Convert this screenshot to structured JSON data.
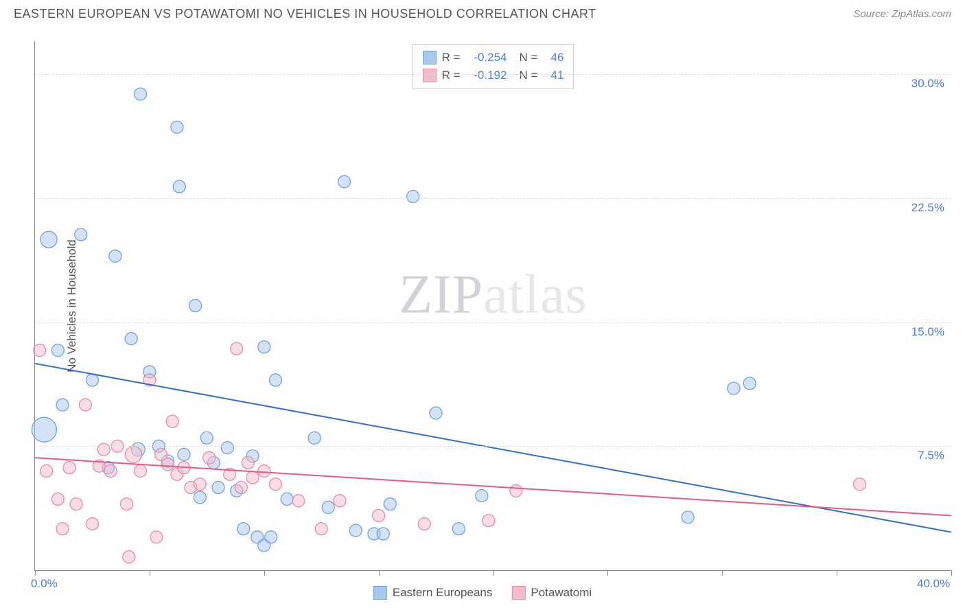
{
  "header": {
    "title": "EASTERN EUROPEAN VS POTAWATOMI NO VEHICLES IN HOUSEHOLD CORRELATION CHART",
    "source_prefix": "Source: ",
    "source": "ZipAtlas.com"
  },
  "chart": {
    "type": "scatter-with-regression",
    "ylabel": "No Vehicles in Household",
    "xlim": [
      0,
      40
    ],
    "ylim": [
      0,
      32
    ],
    "xtick_positions": [
      0,
      5,
      10,
      15,
      20,
      25,
      30,
      35,
      40
    ],
    "xtick_labels": {
      "0": "0.0%",
      "40": "40.0%"
    },
    "ytick_grid": [
      7.5,
      15.0,
      22.5,
      30.0
    ],
    "ytick_labels": [
      "7.5%",
      "15.0%",
      "22.5%",
      "30.0%"
    ],
    "grid_color": "#dddddd",
    "background_color": "#ffffff",
    "axis_color": "#888888",
    "label_color": "#555555",
    "tick_label_color": "#4a7fd8",
    "marker_radius": 9,
    "marker_opacity": 0.5,
    "line_width": 2,
    "watermark": {
      "text_a": "ZIP",
      "text_b": "atlas"
    },
    "series": [
      {
        "name": "Eastern Europeans",
        "color_fill": "#a8c8ec",
        "color_stroke": "#6da3e0",
        "line_color": "#2e6fd1",
        "R": "-0.254",
        "N": "46",
        "regression": {
          "x1": 0,
          "y1": 12.5,
          "x2": 40,
          "y2": 2.3
        },
        "points": [
          [
            0.4,
            8.5,
            18
          ],
          [
            0.6,
            20.0,
            12
          ],
          [
            1.0,
            13.3,
            9
          ],
          [
            1.2,
            10.0,
            9
          ],
          [
            2.0,
            20.3,
            9
          ],
          [
            2.5,
            11.5,
            9
          ],
          [
            3.2,
            6.2,
            9
          ],
          [
            3.5,
            19.0,
            9
          ],
          [
            4.2,
            14.0,
            9
          ],
          [
            4.5,
            7.3,
            10
          ],
          [
            4.6,
            28.8,
            9
          ],
          [
            5.0,
            12.0,
            9
          ],
          [
            5.4,
            7.5,
            9
          ],
          [
            5.8,
            6.6,
            9
          ],
          [
            6.2,
            26.8,
            9
          ],
          [
            6.3,
            23.2,
            9
          ],
          [
            6.5,
            7.0,
            9
          ],
          [
            7.0,
            16.0,
            9
          ],
          [
            7.2,
            4.4,
            9
          ],
          [
            7.5,
            8.0,
            9
          ],
          [
            7.8,
            6.5,
            9
          ],
          [
            8.0,
            5.0,
            9
          ],
          [
            8.4,
            7.4,
            9
          ],
          [
            8.8,
            4.8,
            9
          ],
          [
            9.1,
            2.5,
            9
          ],
          [
            9.5,
            6.9,
            9
          ],
          [
            10.0,
            13.5,
            9
          ],
          [
            9.7,
            2.0,
            9
          ],
          [
            10.0,
            1.5,
            9
          ],
          [
            10.3,
            2.0,
            9
          ],
          [
            10.5,
            11.5,
            9
          ],
          [
            11.0,
            4.3,
            9
          ],
          [
            12.2,
            8.0,
            9
          ],
          [
            12.8,
            3.8,
            9
          ],
          [
            13.5,
            23.5,
            9
          ],
          [
            14.0,
            2.4,
            9
          ],
          [
            14.8,
            2.2,
            9
          ],
          [
            15.2,
            2.2,
            9
          ],
          [
            15.5,
            4.0,
            9
          ],
          [
            16.5,
            22.6,
            9
          ],
          [
            17.5,
            9.5,
            9
          ],
          [
            18.5,
            2.5,
            9
          ],
          [
            19.5,
            4.5,
            9
          ],
          [
            28.5,
            3.2,
            9
          ],
          [
            30.5,
            11.0,
            9
          ],
          [
            31.2,
            11.3,
            9
          ]
        ]
      },
      {
        "name": "Potawatomi",
        "color_fill": "#f4bcc9",
        "color_stroke": "#e88ba3",
        "line_color": "#e25b85",
        "R": "-0.192",
        "N": "41",
        "regression": {
          "x1": 0,
          "y1": 6.8,
          "x2": 40,
          "y2": 3.3
        },
        "points": [
          [
            0.2,
            13.3,
            9
          ],
          [
            0.5,
            6.0,
            9
          ],
          [
            1.0,
            4.3,
            9
          ],
          [
            1.2,
            2.5,
            9
          ],
          [
            1.5,
            6.2,
            9
          ],
          [
            1.8,
            4.0,
            9
          ],
          [
            2.2,
            10.0,
            9
          ],
          [
            2.5,
            2.8,
            9
          ],
          [
            2.8,
            6.3,
            9
          ],
          [
            3.0,
            7.3,
            9
          ],
          [
            3.3,
            6.0,
            9
          ],
          [
            3.6,
            7.5,
            9
          ],
          [
            4.0,
            4.0,
            9
          ],
          [
            4.1,
            0.8,
            9
          ],
          [
            4.3,
            7.0,
            12
          ],
          [
            4.6,
            6.0,
            9
          ],
          [
            5.0,
            11.5,
            9
          ],
          [
            5.3,
            2.0,
            9
          ],
          [
            5.5,
            7.0,
            9
          ],
          [
            5.8,
            6.4,
            9
          ],
          [
            6.0,
            9.0,
            9
          ],
          [
            6.2,
            5.8,
            9
          ],
          [
            6.5,
            6.2,
            9
          ],
          [
            6.8,
            5.0,
            9
          ],
          [
            7.2,
            5.2,
            9
          ],
          [
            7.6,
            6.8,
            9
          ],
          [
            8.8,
            13.4,
            9
          ],
          [
            8.5,
            5.8,
            9
          ],
          [
            9.0,
            5.0,
            9
          ],
          [
            9.3,
            6.5,
            9
          ],
          [
            9.5,
            5.6,
            9
          ],
          [
            10.0,
            6.0,
            9
          ],
          [
            10.5,
            5.2,
            9
          ],
          [
            11.5,
            4.2,
            9
          ],
          [
            12.5,
            2.5,
            9
          ],
          [
            13.3,
            4.2,
            9
          ],
          [
            15.0,
            3.3,
            9
          ],
          [
            17.0,
            2.8,
            9
          ],
          [
            19.8,
            3.0,
            9
          ],
          [
            21.0,
            4.8,
            9
          ],
          [
            36.0,
            5.2,
            9
          ]
        ]
      }
    ]
  },
  "legend_top": {
    "r_label": "R =",
    "n_label": "N ="
  }
}
